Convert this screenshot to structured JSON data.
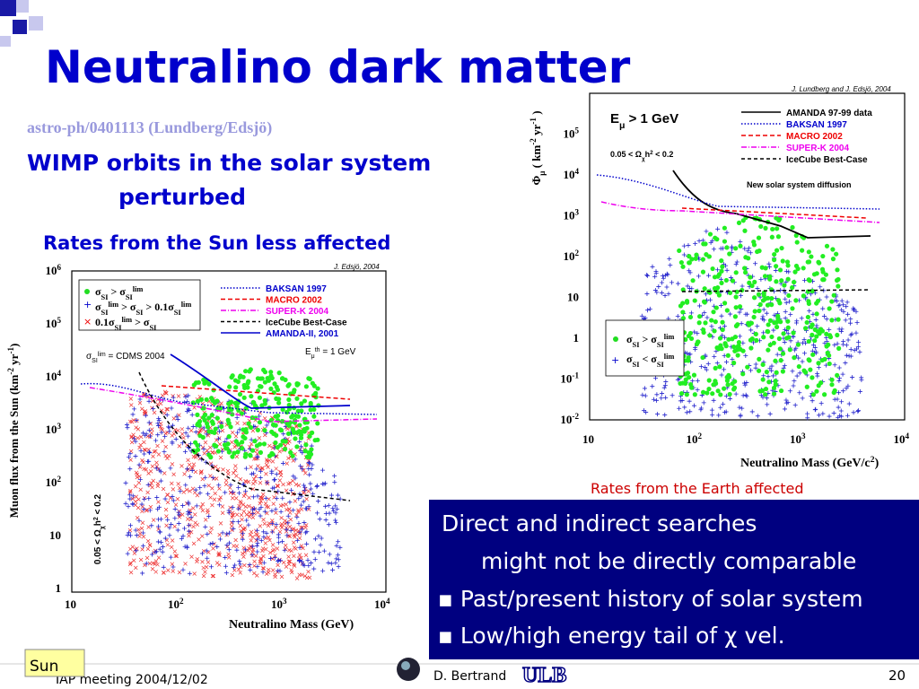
{
  "slide": {
    "title": "Neutralino dark matter",
    "reference": "astro-ph/0401113 (Lundberg/Edsjö)",
    "points": [
      "WIMP orbits in the solar system",
      "perturbed",
      "Rates from the Sun less affected"
    ],
    "left_figure": {
      "credit": "J. Edsjö, 2004",
      "ylabel": [
        [
          "Muon flux from the Sun (km",
          ""
        ],
        [
          "-2",
          "sup"
        ],
        [
          " yr",
          ""
        ],
        [
          "-1",
          "sup"
        ],
        [
          ")",
          ""
        ]
      ],
      "xlabel": "Neutralino Mass (GeV)",
      "yticks": [
        [
          [
            "1",
            ""
          ]
        ],
        [
          [
            "10",
            ""
          ]
        ],
        [
          [
            "10",
            ""
          ],
          [
            "2",
            "sup"
          ]
        ],
        [
          [
            "10",
            ""
          ],
          [
            "3",
            "sup"
          ]
        ],
        [
          [
            "10",
            ""
          ],
          [
            "4",
            "sup"
          ]
        ],
        [
          [
            "10",
            ""
          ],
          [
            "5",
            "sup"
          ]
        ],
        [
          [
            "10",
            ""
          ],
          [
            "6",
            "sup"
          ]
        ]
      ],
      "xticks": [
        [
          [
            "10",
            ""
          ]
        ],
        [
          [
            "10",
            ""
          ],
          [
            "2",
            "sup"
          ]
        ],
        [
          [
            "10",
            ""
          ],
          [
            "3",
            "sup"
          ]
        ],
        [
          [
            "10",
            ""
          ],
          [
            "4",
            "sup"
          ]
        ]
      ],
      "symbols": [
        [
          [
            "σ",
            ""
          ],
          [
            "SI",
            "sub"
          ],
          [
            " > σ",
            ""
          ],
          [
            "SI",
            "sub"
          ],
          [
            "lim",
            "sup"
          ]
        ],
        [
          [
            "σ",
            ""
          ],
          [
            "SI",
            "sub"
          ],
          [
            "lim",
            "sup"
          ],
          [
            " > σ",
            ""
          ],
          [
            "SI",
            "sub"
          ],
          [
            " > 0.1σ",
            ""
          ],
          [
            "SI",
            "sub"
          ],
          [
            "lim",
            "sup"
          ]
        ],
        [
          [
            "0.1σ",
            ""
          ],
          [
            "SI",
            "sub"
          ],
          [
            "lim",
            "sup"
          ],
          [
            " > σ",
            ""
          ],
          [
            "SI",
            "sub"
          ]
        ]
      ],
      "limit": [
        [
          "σ",
          ""
        ],
        [
          "SI",
          "sub"
        ],
        [
          "lim",
          "sup"
        ],
        [
          " = CDMS 2004",
          ""
        ]
      ],
      "legend": [
        "BAKSAN 1997",
        "MACRO 2002",
        "SUPER-K 2004",
        "IceCube Best-Case",
        "AMANDA-II, 2001"
      ],
      "threshold": [
        [
          "E",
          ""
        ],
        [
          "μ",
          "sub"
        ],
        [
          "th",
          "sup"
        ],
        [
          " = 1 GeV",
          ""
        ]
      ],
      "constraint": [
        [
          "0.05 < Ω",
          ""
        ],
        [
          "χ",
          "sub"
        ],
        [
          "h",
          ""
        ],
        [
          "2",
          "sup"
        ],
        [
          " < 0.2",
          ""
        ]
      ]
    },
    "right_figure": {
      "credit": "J. Lundberg and J. Edsjö, 2004",
      "ylabel": [
        [
          "Φ",
          ""
        ],
        [
          "μ",
          "sub"
        ],
        [
          " ( km",
          ""
        ],
        [
          "-2",
          "sup"
        ],
        [
          " yr",
          ""
        ],
        [
          "-1",
          "sup"
        ],
        [
          " )",
          ""
        ]
      ],
      "xlabel": [
        [
          "Neutralino Mass (GeV/c",
          ""
        ],
        [
          "2",
          "sup"
        ],
        [
          ")",
          ""
        ]
      ],
      "yticks": [
        [
          [
            "10",
            ""
          ],
          [
            "-2",
            "sup"
          ]
        ],
        [
          [
            "10",
            ""
          ],
          [
            "-1",
            "sup"
          ]
        ],
        [
          [
            "1",
            ""
          ]
        ],
        [
          [
            "10",
            ""
          ]
        ],
        [
          [
            "10",
            ""
          ],
          [
            "2",
            "sup"
          ]
        ],
        [
          [
            "10",
            ""
          ],
          [
            "3",
            "sup"
          ]
        ],
        [
          [
            "10",
            ""
          ],
          [
            "4",
            "sup"
          ]
        ],
        [
          [
            "10",
            ""
          ],
          [
            "5",
            "sup"
          ]
        ]
      ],
      "xticks": [
        [
          [
            "10",
            ""
          ]
        ],
        [
          [
            "10",
            ""
          ],
          [
            "2",
            "sup"
          ]
        ],
        [
          [
            "10",
            ""
          ],
          [
            "3",
            "sup"
          ]
        ],
        [
          [
            "10",
            ""
          ],
          [
            "4",
            "sup"
          ]
        ]
      ],
      "energy": [
        [
          "E",
          ""
        ],
        [
          "μ",
          "sub"
        ],
        [
          " > 1 GeV",
          ""
        ]
      ],
      "constraint": [
        [
          "0.05 < Ω",
          ""
        ],
        [
          "χ",
          "sub"
        ],
        [
          "h",
          ""
        ],
        [
          "2",
          "sup"
        ],
        [
          " < 0.2",
          ""
        ]
      ],
      "legend": [
        "AMANDA 97-99 data",
        "BAKSAN 1997",
        "MACRO 2002",
        "SUPER-K 2004",
        "IceCube Best-Case"
      ],
      "note": "New solar system diffusion",
      "symbols": [
        [
          [
            "σ",
            ""
          ],
          [
            "SI",
            "sub"
          ],
          [
            " > σ",
            ""
          ],
          [
            "SI",
            "sub"
          ],
          [
            "lim",
            "sup"
          ]
        ],
        [
          [
            "σ",
            ""
          ],
          [
            "SI",
            "sub"
          ],
          [
            " < σ",
            ""
          ],
          [
            "SI",
            "sub"
          ],
          [
            "lim",
            "sup"
          ]
        ]
      ],
      "caption": "Rates from the Earth affected"
    },
    "box": [
      "Direct and indirect searches",
      "might not be directly comparable",
      "▪ Past/present history of solar system",
      "▪ Low/high energy tail of χ vel."
    ],
    "footer": {
      "sun": "Sun",
      "meeting": "IAP meeting 2004/12/02",
      "author": "D. Bertrand",
      "logo": "ULB",
      "page": "20"
    }
  }
}
